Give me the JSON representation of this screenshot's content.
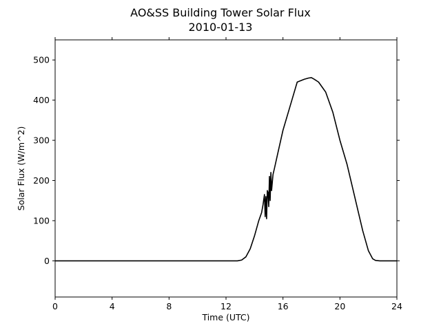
{
  "chart_data": {
    "type": "line",
    "title": "AO&SS Building Tower Solar Flux",
    "subtitle": "2010-01-13",
    "xlabel": "Time (UTC)",
    "ylabel": "Solar Flux (W/m^2)",
    "xlim": [
      0,
      24
    ],
    "ylim": [
      -90,
      550
    ],
    "xticks": [
      "0",
      "4",
      "8",
      "12",
      "16",
      "20",
      "24"
    ],
    "yticks": [
      "0",
      "100",
      "200",
      "300",
      "400",
      "500"
    ],
    "grid": false,
    "legend": "none",
    "series": [
      {
        "color": "#000000",
        "x": [
          0,
          4,
          8,
          12,
          12.8,
          13.1,
          13.4,
          13.7,
          14.0,
          14.3,
          14.5,
          14.6,
          14.7,
          14.75,
          14.8,
          14.85,
          14.9,
          14.95,
          15.0,
          15.05,
          15.1,
          15.15,
          15.2,
          15.3,
          15.4,
          15.6,
          16.0,
          16.5,
          17.0,
          17.5,
          17.8,
          18.0,
          18.2,
          18.5,
          18.8,
          19.0,
          19.5,
          20.0,
          20.5,
          21.0,
          21.3,
          21.6,
          22.0,
          22.3,
          22.5,
          22.8,
          23.2,
          24
        ],
        "y": [
          0,
          0,
          0,
          0,
          0,
          2,
          10,
          30,
          62,
          100,
          120,
          140,
          165,
          110,
          160,
          105,
          175,
          170,
          135,
          210,
          150,
          220,
          175,
          215,
          230,
          262,
          325,
          385,
          445,
          452,
          455,
          456,
          452,
          445,
          430,
          420,
          370,
          300,
          240,
          165,
          120,
          75,
          25,
          5,
          1,
          0,
          0,
          0
        ]
      }
    ]
  }
}
